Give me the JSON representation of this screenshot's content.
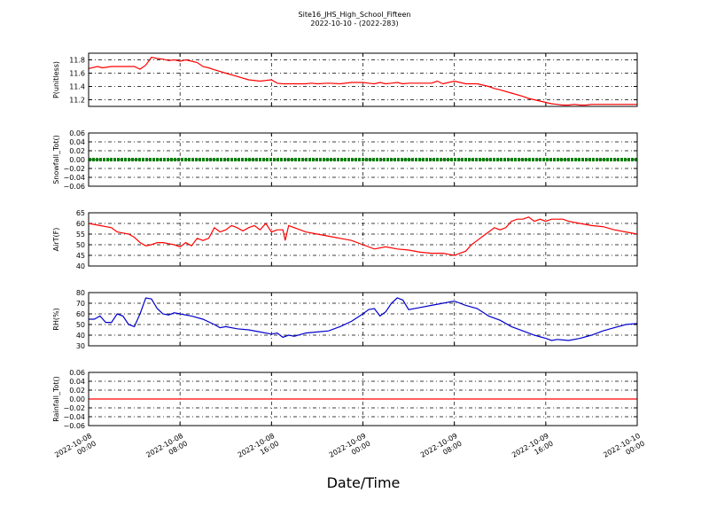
{
  "header": {
    "title": "Site16_JHS_High_School_Fifteen",
    "subtitle": "2022-10-10 - (2022-283)"
  },
  "chart_data": {
    "type": "line",
    "xlabel": "Date/Time",
    "x_ticks": [
      [
        "2022-10-08",
        "00:00"
      ],
      [
        "2022-10-08",
        "08:00"
      ],
      [
        "2022-10-08",
        "16:00"
      ],
      [
        "2022-10-09",
        "00:00"
      ],
      [
        "2022-10-09",
        "08:00"
      ],
      [
        "2022-10-09",
        "16:00"
      ],
      [
        "2022-10-10",
        "00:00"
      ]
    ],
    "xlim_hours": [
      0,
      48
    ],
    "panels": [
      {
        "ylabel": "P(unitless)",
        "ylim": [
          11.1,
          11.9
        ],
        "yticks": [
          "11.2",
          "11.4",
          "11.6",
          "11.8"
        ],
        "ytick_values": [
          11.2,
          11.4,
          11.6,
          11.8
        ],
        "color": "#ff0000",
        "style": "line",
        "x": [
          0,
          0.8,
          1.2,
          2,
          3,
          4,
          4.5,
          5,
          5.5,
          6,
          6.5,
          7,
          7.5,
          8,
          8.5,
          9,
          9.5,
          10,
          10.5,
          11,
          12,
          13,
          14,
          15,
          16,
          16.5,
          17,
          17.5,
          18,
          19,
          19.5,
          20,
          21,
          22,
          23,
          24,
          24.5,
          25,
          25.5,
          26,
          26.5,
          27,
          27.5,
          28,
          29,
          30,
          30.5,
          31,
          31.5,
          32,
          32.5,
          33,
          34,
          35,
          35.5,
          36,
          37,
          38,
          38.5,
          39,
          40,
          40.5,
          41,
          41.5,
          42,
          42.5,
          43,
          43.5,
          44,
          45,
          46,
          47,
          48
        ],
        "y": [
          11.67,
          11.7,
          11.68,
          11.7,
          11.7,
          11.7,
          11.66,
          11.72,
          11.84,
          11.82,
          11.81,
          11.79,
          11.8,
          11.78,
          11.8,
          11.78,
          11.76,
          11.7,
          11.68,
          11.65,
          11.6,
          11.55,
          11.5,
          11.48,
          11.5,
          11.45,
          11.44,
          11.44,
          11.44,
          11.44,
          11.45,
          11.44,
          11.45,
          11.44,
          11.46,
          11.46,
          11.45,
          11.44,
          11.46,
          11.44,
          11.45,
          11.46,
          11.44,
          11.45,
          11.45,
          11.45,
          11.48,
          11.44,
          11.46,
          11.48,
          11.46,
          11.44,
          11.44,
          11.4,
          11.37,
          11.35,
          11.3,
          11.25,
          11.22,
          11.2,
          11.16,
          11.14,
          11.13,
          11.12,
          11.12,
          11.13,
          11.12,
          11.12,
          11.13,
          11.13,
          11.13,
          11.13,
          11.13
        ]
      },
      {
        "ylabel": "Snowfall_Tot()",
        "ylim": [
          -0.06,
          0.06
        ],
        "yticks": [
          "−0.06",
          "−0.04",
          "−0.02",
          "0.00",
          "0.02",
          "0.04",
          "0.06"
        ],
        "ytick_values": [
          -0.06,
          -0.04,
          -0.02,
          0,
          0.02,
          0.04,
          0.06
        ],
        "color": "#008000",
        "style": "markers",
        "x": [
          0,
          48
        ],
        "y": [
          0,
          0
        ]
      },
      {
        "ylabel": "AirT(F)",
        "ylim": [
          40,
          65
        ],
        "yticks": [
          "40",
          "45",
          "50",
          "55",
          "60",
          "65"
        ],
        "ytick_values": [
          40,
          45,
          50,
          55,
          60,
          65
        ],
        "color": "#ff0000",
        "style": "line",
        "x": [
          0,
          1,
          2,
          2.5,
          3,
          3.5,
          4,
          4.5,
          5,
          5.5,
          6,
          6.5,
          7,
          7.5,
          8,
          8.5,
          9,
          9.5,
          10,
          10.5,
          11,
          11.5,
          12,
          12.5,
          13,
          13.5,
          14,
          14.5,
          15,
          15.5,
          16,
          16.5,
          17,
          17.2,
          17.5,
          18,
          18.5,
          19,
          20,
          21,
          22,
          23,
          24,
          25,
          26,
          27,
          28,
          29,
          30,
          31,
          32,
          32.5,
          33,
          33.5,
          34,
          34.5,
          35,
          35.5,
          36,
          36.5,
          37,
          37.5,
          38,
          38.5,
          39,
          39.5,
          40,
          40.5,
          41,
          41.5,
          42,
          43,
          44,
          45,
          46,
          47,
          48
        ],
        "y": [
          60,
          59,
          58,
          56,
          55.5,
          55,
          53.5,
          51,
          49.5,
          50,
          51,
          51,
          50.5,
          50,
          49,
          51,
          49.5,
          53,
          52,
          53,
          58,
          56,
          57,
          59,
          58,
          56.5,
          58,
          59,
          57,
          60,
          56,
          57,
          57,
          52,
          59,
          58,
          57,
          56,
          55,
          54,
          53,
          52,
          50,
          48,
          49,
          48,
          47.5,
          46.5,
          46,
          46,
          45,
          46,
          47,
          50,
          52,
          54,
          56,
          58,
          57,
          58,
          61,
          62,
          62,
          63,
          61,
          62,
          61,
          62,
          62,
          62,
          61,
          60,
          59,
          58.5,
          57,
          56,
          55
        ]
      },
      {
        "ylabel": "RH(%)",
        "ylim": [
          30,
          80
        ],
        "yticks": [
          "30",
          "40",
          "50",
          "60",
          "70",
          "80"
        ],
        "ytick_values": [
          30,
          40,
          50,
          60,
          70,
          80
        ],
        "color": "#0000cc",
        "style": "line",
        "x": [
          0,
          0.5,
          1,
          1.5,
          2,
          2.5,
          3,
          3.5,
          4,
          4.5,
          5,
          5.5,
          6,
          6.5,
          7,
          7.5,
          8,
          9,
          10,
          11,
          11.5,
          12,
          13,
          14,
          15,
          16,
          16.5,
          17,
          17.5,
          18,
          19,
          20,
          21,
          22,
          23,
          24,
          24.5,
          25,
          25.5,
          26,
          26.5,
          27,
          27.5,
          28,
          29,
          30,
          31,
          32,
          33,
          34,
          35,
          36,
          37,
          38,
          39,
          40,
          40.5,
          41,
          42,
          43,
          44,
          45,
          46,
          47,
          48
        ],
        "y": [
          55,
          55,
          58,
          52,
          52,
          60,
          58,
          50,
          48,
          60,
          75,
          74,
          65,
          60,
          59,
          61,
          60,
          58,
          55,
          50,
          47,
          48,
          46,
          45,
          43,
          41,
          42,
          38,
          40,
          39,
          42,
          43,
          44,
          48,
          53,
          60,
          64,
          65,
          58,
          62,
          70,
          75,
          73,
          64,
          66,
          68,
          70,
          72,
          68,
          65,
          58,
          54,
          48,
          44,
          40,
          37,
          35,
          36,
          35,
          37,
          40,
          44,
          47,
          50,
          51
        ]
      },
      {
        "ylabel": "Rainfall_Tot()",
        "ylim": [
          -0.06,
          0.06
        ],
        "yticks": [
          "−0.06",
          "−0.04",
          "−0.02",
          "0.00",
          "0.02",
          "0.04",
          "0.06"
        ],
        "ytick_values": [
          -0.06,
          -0.04,
          -0.02,
          0,
          0.02,
          0.04,
          0.06
        ],
        "color": "#ff0000",
        "style": "line",
        "x": [
          0,
          48
        ],
        "y": [
          0,
          0
        ]
      }
    ]
  }
}
